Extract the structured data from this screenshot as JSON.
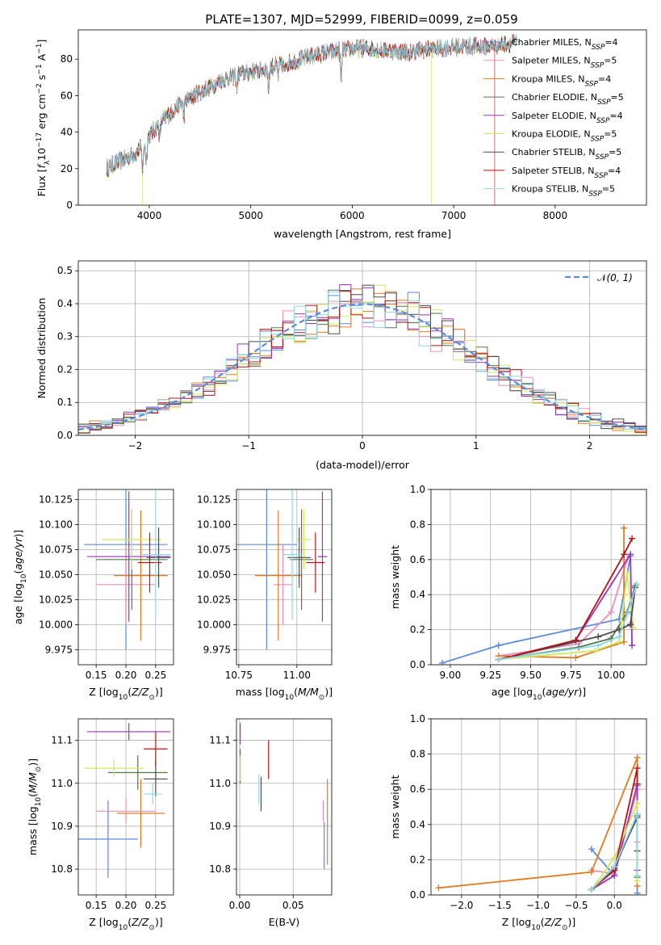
{
  "figure_title": "PLATE=1307, MJD=52999, FIBERID=0099, z=0.059",
  "colors": {
    "Chabrier MILES": "#5b8bd9",
    "Salpeter MILES": "#e88fbf",
    "Kroupa MILES": "#e07b20",
    "Chabrier ELODIE": "#4f7a45",
    "Salpeter ELODIE": "#9b34b8",
    "Kroupa ELODIE": "#d2e85a",
    "Chabrier STELIB": "#4a4a4a",
    "Salpeter STELIB": "#b81414",
    "Kroupa STELIB": "#8fd8e6",
    "normal": "#5b8bd9"
  },
  "chart_data": [
    {
      "id": "spectrum",
      "type": "line",
      "title": "PLATE=1307, MJD=52999, FIBERID=0099, z=0.059",
      "xlabel": "wavelength [Angstrom, rest frame]",
      "ylabel": "Flux [f_λ 10^-17 erg cm^-2 s^-1 A^-1]",
      "xlim": [
        3300,
        8900
      ],
      "ylim": [
        0,
        96
      ],
      "xticks": [
        4000,
        5000,
        6000,
        7000,
        8000
      ],
      "yticks": [
        0,
        20,
        40,
        60,
        80
      ],
      "grid": false,
      "legend_position": "top-right",
      "continuum": {
        "x": [
          3580,
          3700,
          3800,
          3900,
          4000,
          4100,
          4300,
          4500,
          4700,
          4900,
          5100,
          5300,
          5500,
          5700,
          5900,
          6100,
          6300,
          6500,
          6700,
          6900,
          7100,
          7300,
          7500,
          7600
        ],
        "y": [
          20,
          24,
          26,
          30,
          38,
          45,
          55,
          62,
          68,
          72,
          74,
          77,
          80,
          83,
          85,
          86,
          85,
          84,
          85,
          86,
          87,
          87,
          88,
          89
        ]
      },
      "series": [
        {
          "name": "Chabrier MILES",
          "nssp": "4"
        },
        {
          "name": "Salpeter MILES",
          "nssp": "5"
        },
        {
          "name": "Kroupa MILES",
          "nssp": "4"
        },
        {
          "name": "Chabrier ELODIE",
          "nssp": "5"
        },
        {
          "name": "Salpeter ELODIE",
          "nssp": "4"
        },
        {
          "name": "Kroupa ELODIE",
          "nssp": "5"
        },
        {
          "name": "Chabrier STELIB",
          "nssp": "5"
        },
        {
          "name": "Salpeter STELIB",
          "nssp": "4"
        },
        {
          "name": "Kroupa STELIB",
          "nssp": "5"
        }
      ]
    },
    {
      "id": "residuals",
      "type": "line",
      "xlabel": "(data-model)/error",
      "ylabel": "Normed distribution",
      "xlim": [
        -2.5,
        2.5
      ],
      "ylim": [
        0,
        0.53
      ],
      "xticks": [
        -2,
        -1,
        0,
        1,
        2
      ],
      "yticks": [
        0.0,
        0.1,
        0.2,
        0.3,
        0.4,
        0.5
      ],
      "grid": true,
      "legend_position": "top-right",
      "normal_label": "N(0,1)",
      "histogram": {
        "bin_start": -2.5,
        "bin_width": 0.1,
        "bins": 50
      }
    },
    {
      "id": "age_vs_Z",
      "type": "scatter",
      "xlabel": "Z [log10(Z/Z⊙)]",
      "ylabel": "age [log10(age/yr)]",
      "xlim": [
        0.12,
        0.28
      ],
      "ylim": [
        9.96,
        10.135
      ],
      "xticks": [
        0.15,
        0.2,
        0.25
      ],
      "yticks": [
        9.975,
        10.0,
        10.025,
        10.05,
        10.075,
        10.1,
        10.125
      ],
      "grid": true,
      "points": [
        {
          "series": "Chabrier MILES",
          "x": 0.2,
          "y": 10.08,
          "xerr": 0.07,
          "yerr": 0.105
        },
        {
          "series": "Salpeter MILES",
          "x": 0.2,
          "y": 10.04,
          "xerr": 0.05,
          "yerr": 0.04
        },
        {
          "series": "Kroupa MILES",
          "x": 0.225,
          "y": 10.049,
          "xerr": 0.045,
          "yerr": 0.065
        },
        {
          "series": "Chabrier ELODIE",
          "x": 0.21,
          "y": 10.065,
          "xerr": 0.06,
          "yerr": 0.05
        },
        {
          "series": "Salpeter ELODIE",
          "x": 0.205,
          "y": 10.068,
          "xerr": 0.07,
          "yerr": 0.065
        },
        {
          "series": "Kroupa ELODIE",
          "x": 0.21,
          "y": 10.085,
          "xerr": 0.05,
          "yerr": 0.03
        },
        {
          "series": "Chabrier STELIB",
          "x": 0.255,
          "y": 10.067,
          "xerr": 0.02,
          "yerr": 0.03
        },
        {
          "series": "Salpeter STELIB",
          "x": 0.24,
          "y": 10.062,
          "xerr": 0.02,
          "yerr": 0.03
        },
        {
          "series": "Kroupa STELIB",
          "x": 0.25,
          "y": 10.07,
          "xerr": 0.025,
          "yerr": 0.065
        }
      ]
    },
    {
      "id": "age_vs_mass",
      "type": "scatter",
      "xlabel": "mass [log10(M/M⊙)]",
      "ylabel": "",
      "xlim": [
        10.74,
        11.15
      ],
      "ylim": [
        9.96,
        10.135
      ],
      "xticks": [
        10.75,
        11.0
      ],
      "yticks": [
        9.975,
        10.0,
        10.025,
        10.05,
        10.075,
        10.1,
        10.125
      ],
      "grid": true,
      "points": [
        {
          "series": "Chabrier MILES",
          "x": 10.87,
          "y": 10.08,
          "xerr": 0.13,
          "yerr": 0.105
        },
        {
          "series": "Salpeter MILES",
          "x": 10.94,
          "y": 10.04,
          "xerr": 0.04,
          "yerr": 0.04
        },
        {
          "series": "Kroupa MILES",
          "x": 10.92,
          "y": 10.049,
          "xerr": 0.1,
          "yerr": 0.065
        },
        {
          "series": "Chabrier ELODIE",
          "x": 11.02,
          "y": 10.065,
          "xerr": 0.05,
          "yerr": 0.05
        },
        {
          "series": "Salpeter ELODIE",
          "x": 11.11,
          "y": 10.068,
          "xerr": 0.02,
          "yerr": 0.065
        },
        {
          "series": "Kroupa ELODIE",
          "x": 11.03,
          "y": 10.085,
          "xerr": 0.03,
          "yerr": 0.03
        },
        {
          "series": "Chabrier STELIB",
          "x": 11.01,
          "y": 10.067,
          "xerr": 0.05,
          "yerr": 0.03
        },
        {
          "series": "Salpeter STELIB",
          "x": 11.08,
          "y": 10.062,
          "xerr": 0.04,
          "yerr": 0.03
        },
        {
          "series": "Kroupa STELIB",
          "x": 10.98,
          "y": 10.07,
          "xerr": 0.04,
          "yerr": 0.065
        }
      ]
    },
    {
      "id": "mass_weight_vs_age",
      "type": "line",
      "xlabel": "age [log10(age/yr)]",
      "ylabel": "mass weight",
      "xlim": [
        8.88,
        10.22
      ],
      "ylim": [
        0,
        1.0
      ],
      "xticks": [
        9.0,
        9.25,
        9.5,
        9.75,
        10.0
      ],
      "yticks": [
        0.0,
        0.2,
        0.4,
        0.6,
        0.8,
        1.0
      ],
      "grid": true,
      "series": [
        {
          "name": "Chabrier MILES",
          "x": [
            8.95,
            9.3,
            10.05,
            10.12
          ],
          "y": [
            0.01,
            0.11,
            0.26,
            0.62
          ]
        },
        {
          "name": "Salpeter MILES",
          "x": [
            9.3,
            9.8,
            10.0,
            10.1
          ],
          "y": [
            0.05,
            0.12,
            0.3,
            0.6
          ]
        },
        {
          "name": "Kroupa MILES",
          "x": [
            9.3,
            9.78,
            10.08,
            10.08
          ],
          "y": [
            0.05,
            0.04,
            0.13,
            0.78
          ]
        },
        {
          "name": "Chabrier ELODIE",
          "x": [
            9.3,
            9.8,
            10.0,
            10.1,
            10.15
          ],
          "y": [
            0.03,
            0.1,
            0.15,
            0.3,
            0.45
          ]
        },
        {
          "name": "Salpeter ELODIE",
          "x": [
            9.3,
            9.78,
            10.12,
            10.13
          ],
          "y": [
            0.03,
            0.14,
            0.63,
            0.11
          ]
        },
        {
          "name": "Kroupa ELODIE",
          "x": [
            9.3,
            9.9,
            10.05,
            10.1,
            10.14
          ],
          "y": [
            0.03,
            0.08,
            0.13,
            0.52,
            0.21
          ]
        },
        {
          "name": "Chabrier STELIB",
          "x": [
            9.3,
            9.92,
            10.05,
            10.12,
            10.15
          ],
          "y": [
            0.03,
            0.16,
            0.2,
            0.23,
            0.44
          ]
        },
        {
          "name": "Salpeter STELIB",
          "x": [
            9.3,
            9.78,
            10.08,
            10.13
          ],
          "y": [
            0.03,
            0.14,
            0.63,
            0.72
          ]
        },
        {
          "name": "Kroupa STELIB",
          "x": [
            9.3,
            9.92,
            10.05,
            10.1,
            10.16
          ],
          "y": [
            0.03,
            0.11,
            0.16,
            0.29,
            0.46
          ]
        }
      ]
    },
    {
      "id": "mass_vs_Z",
      "type": "scatter",
      "xlabel": "Z [log10(Z/Z⊙)]",
      "ylabel": "mass [log10(M/M⊙)]",
      "xlim": [
        0.12,
        0.28
      ],
      "ylim": [
        10.74,
        11.15
      ],
      "xticks": [
        0.15,
        0.2,
        0.25
      ],
      "yticks": [
        10.8,
        10.9,
        11.0,
        11.1
      ],
      "grid": true,
      "points": [
        {
          "series": "Chabrier MILES",
          "x": 0.17,
          "y": 10.87,
          "xerr": 0.05,
          "yerr": 0.09
        },
        {
          "series": "Salpeter MILES",
          "x": 0.2,
          "y": 10.935,
          "xerr": 0.05,
          "yerr": 0.03
        },
        {
          "series": "Kroupa MILES",
          "x": 0.225,
          "y": 10.93,
          "xerr": 0.04,
          "yerr": 0.08
        },
        {
          "series": "Chabrier ELODIE",
          "x": 0.22,
          "y": 11.025,
          "xerr": 0.05,
          "yerr": 0.04
        },
        {
          "series": "Salpeter ELODIE",
          "x": 0.205,
          "y": 11.12,
          "xerr": 0.07,
          "yerr": 0.02
        },
        {
          "series": "Kroupa ELODIE",
          "x": 0.18,
          "y": 11.035,
          "xerr": 0.05,
          "yerr": 0.02
        },
        {
          "series": "Chabrier STELIB",
          "x": 0.25,
          "y": 11.01,
          "xerr": 0.02,
          "yerr": 0.04
        },
        {
          "series": "Salpeter STELIB",
          "x": 0.25,
          "y": 11.08,
          "xerr": 0.02,
          "yerr": 0.04
        },
        {
          "series": "Kroupa STELIB",
          "x": 0.245,
          "y": 10.975,
          "xerr": 0.015,
          "yerr": 0.025
        }
      ]
    },
    {
      "id": "mass_vs_ebv",
      "type": "scatter",
      "xlabel": "E(B-V)",
      "ylabel": "",
      "xlim": [
        -0.003,
        0.086
      ],
      "ylim": [
        10.74,
        11.15
      ],
      "xticks": [
        0.0,
        0.05
      ],
      "yticks": [
        10.8,
        10.9,
        11.0,
        11.1
      ],
      "grid": true,
      "points": [
        {
          "series": "Chabrier MILES",
          "x": 0.079,
          "y": 10.855,
          "xerr": 0,
          "yerr": 0.055
        },
        {
          "series": "Salpeter MILES",
          "x": 0.078,
          "y": 10.935,
          "xerr": 0,
          "yerr": 0.025
        },
        {
          "series": "Kroupa MILES",
          "x": 0.082,
          "y": 10.91,
          "xerr": 0,
          "yerr": 0.1
        },
        {
          "series": "Chabrier ELODIE",
          "x": 0.0005,
          "y": 11.04,
          "xerr": 0,
          "yerr": 0.04
        },
        {
          "series": "Salpeter ELODIE",
          "x": 0.0005,
          "y": 11.115,
          "xerr": 0,
          "yerr": 0.025
        },
        {
          "series": "Kroupa ELODIE",
          "x": 0.0005,
          "y": 11.035,
          "xerr": 0,
          "yerr": 0.03
        },
        {
          "series": "Chabrier STELIB",
          "x": 0.02,
          "y": 10.975,
          "xerr": 0,
          "yerr": 0.04
        },
        {
          "series": "Salpeter STELIB",
          "x": 0.027,
          "y": 11.055,
          "xerr": 0,
          "yerr": 0.045
        },
        {
          "series": "Kroupa STELIB",
          "x": 0.018,
          "y": 10.985,
          "xerr": 0,
          "yerr": 0.035
        }
      ]
    },
    {
      "id": "mass_weight_vs_Z",
      "type": "line",
      "xlabel": "Z [log10(Z/Z⊙)]",
      "ylabel": "mass weight",
      "xlim": [
        -2.4,
        0.42
      ],
      "ylim": [
        0,
        1.0
      ],
      "xticks": [
        -2.0,
        -1.5,
        -1.0,
        -0.5,
        0.0
      ],
      "yticks": [
        0.0,
        0.2,
        0.4,
        0.6,
        0.8,
        1.0
      ],
      "grid": true,
      "series": [
        {
          "name": "Chabrier MILES",
          "x": [
            -0.3,
            0.0,
            0.3,
            0.3
          ],
          "y": [
            0.26,
            0.11,
            0.62,
            0.01
          ]
        },
        {
          "name": "Salpeter MILES",
          "x": [
            -0.3,
            0.0,
            0.3,
            0.3
          ],
          "y": [
            0.14,
            0.12,
            0.6,
            0.3
          ]
        },
        {
          "name": "Kroupa MILES",
          "x": [
            -2.3,
            -0.3,
            0.3,
            0.3
          ],
          "y": [
            0.04,
            0.13,
            0.78,
            0.05
          ]
        },
        {
          "name": "Chabrier ELODIE",
          "x": [
            -0.3,
            0.0,
            0.3,
            0.3
          ],
          "y": [
            0.03,
            0.15,
            0.45,
            0.1
          ]
        },
        {
          "name": "Salpeter ELODIE",
          "x": [
            -0.3,
            0.0,
            0.3,
            0.3
          ],
          "y": [
            0.03,
            0.11,
            0.63,
            0.14
          ]
        },
        {
          "name": "Kroupa ELODIE",
          "x": [
            -0.3,
            0.0,
            0.3,
            0.3
          ],
          "y": [
            0.03,
            0.21,
            0.52,
            0.08
          ]
        },
        {
          "name": "Chabrier STELIB",
          "x": [
            -0.3,
            0.0,
            0.3,
            0.3
          ],
          "y": [
            0.03,
            0.16,
            0.44,
            0.25
          ]
        },
        {
          "name": "Salpeter STELIB",
          "x": [
            -0.3,
            0.0,
            0.3,
            0.3
          ],
          "y": [
            0.03,
            0.14,
            0.72,
            0.63
          ]
        },
        {
          "name": "Kroupa STELIB",
          "x": [
            -0.3,
            0.0,
            0.3,
            0.3
          ],
          "y": [
            0.03,
            0.16,
            0.46,
            0.11
          ]
        }
      ]
    }
  ]
}
